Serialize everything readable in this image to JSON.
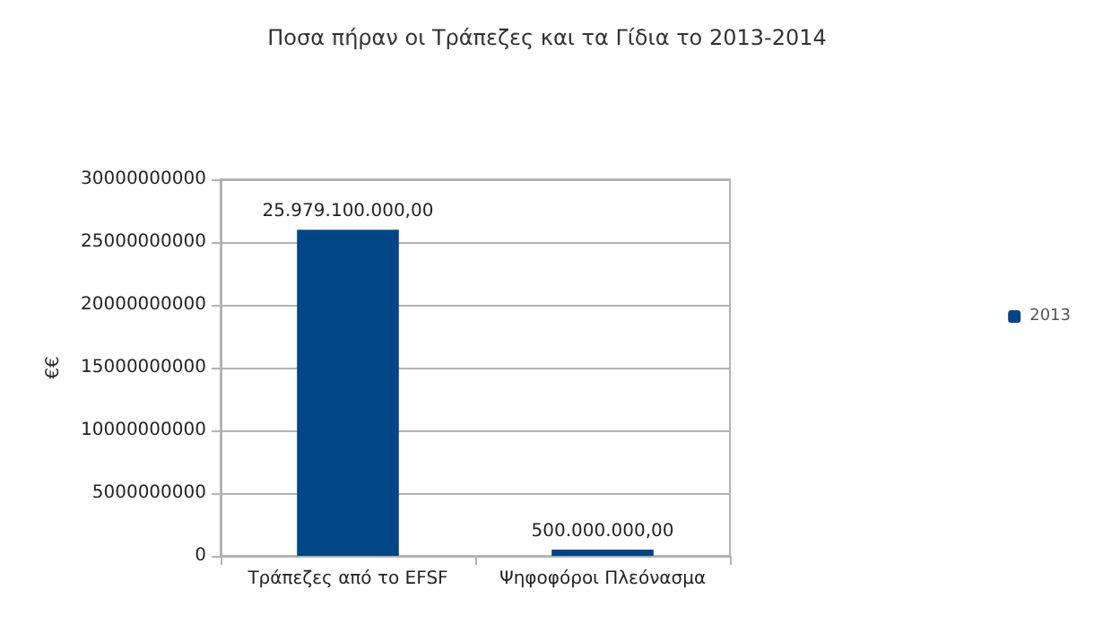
{
  "chart_data": {
    "type": "bar",
    "title": "Ποσα πήραν οι Τράπεζες και τα Γίδια το 2013-2014",
    "ylabel": "€€",
    "categories": [
      "Τράπεζες από το EFSF",
      "Ψηφοφόροι Πλεόνασμα"
    ],
    "series": [
      {
        "name": "2013",
        "color": "#004586",
        "values": [
          25979100000,
          500000000
        ],
        "value_labels": [
          "25.979.100.000,00",
          "500.000.000,00"
        ]
      }
    ],
    "ylim": [
      0,
      30000000000
    ],
    "yticks": [
      0,
      5000000000,
      10000000000,
      15000000000,
      20000000000,
      25000000000,
      30000000000
    ],
    "grid": "y",
    "legend": "right"
  }
}
